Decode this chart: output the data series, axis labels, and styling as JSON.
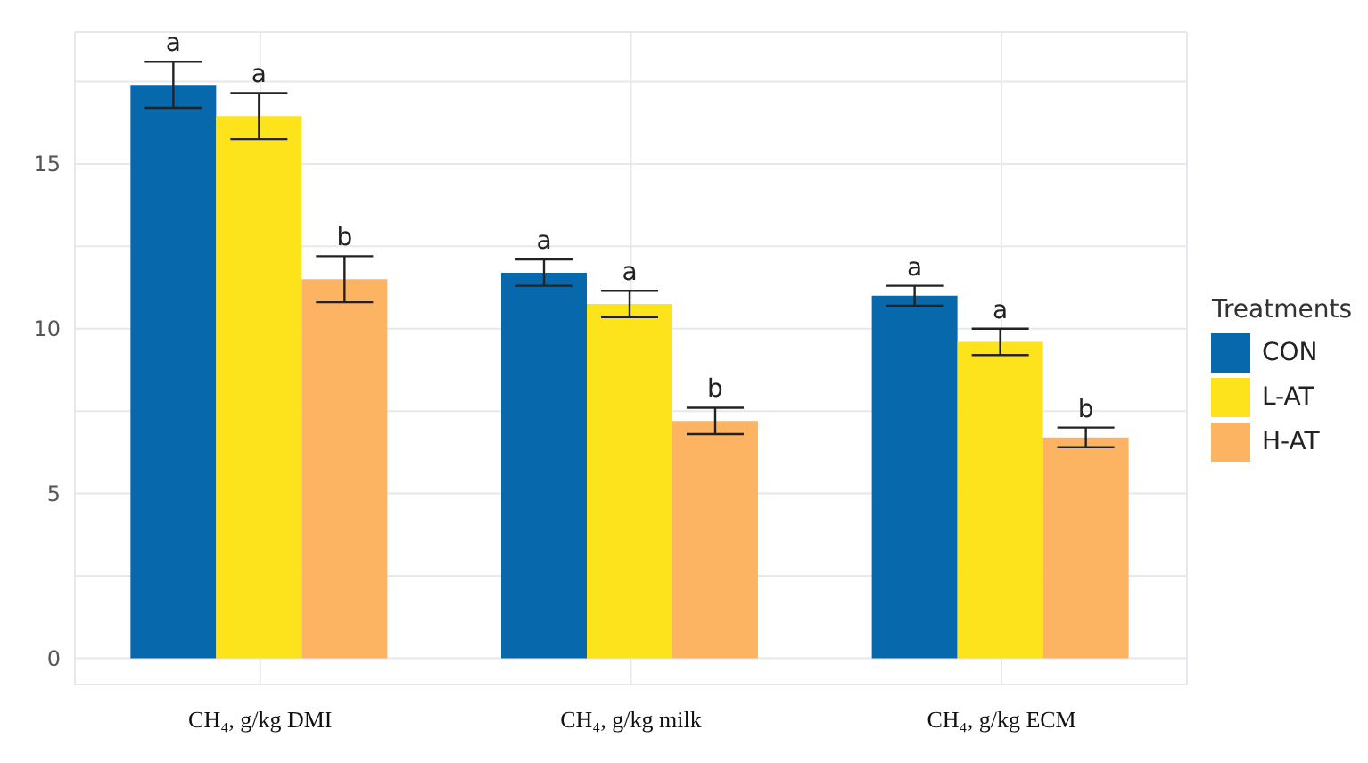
{
  "chart_data": {
    "type": "bar",
    "categories": [
      "CH₄, g/kg DMI",
      "CH₄, g/kg milk",
      "CH₄, g/kg ECM"
    ],
    "series": [
      {
        "name": "CON",
        "color": "#0868ac",
        "values": [
          17.4,
          11.7,
          11.0
        ],
        "errors": [
          0.7,
          0.4,
          0.3
        ]
      },
      {
        "name": "L-AT",
        "color": "#fde31b",
        "values": [
          16.45,
          10.75,
          9.6
        ],
        "errors": [
          0.7,
          0.4,
          0.4
        ]
      },
      {
        "name": "H-AT",
        "color": "#fdb462",
        "values": [
          11.5,
          7.2,
          6.7
        ],
        "errors": [
          0.7,
          0.4,
          0.3
        ]
      }
    ],
    "ylim": [
      -0.8,
      19
    ],
    "yticks": [
      0,
      {
        "value": 2.5,
        "label": null
      },
      5,
      {
        "value": 7.5,
        "label": null
      },
      10,
      {
        "value": 12.5,
        "label": null
      },
      15,
      {
        "value": 17.5,
        "label": null
      }
    ],
    "grid": true,
    "legend": "right",
    "legend_title": "Treatments",
    "annotations": [
      "a",
      "a",
      "b",
      "a",
      "a",
      "b",
      "a",
      "a",
      "b"
    ]
  }
}
